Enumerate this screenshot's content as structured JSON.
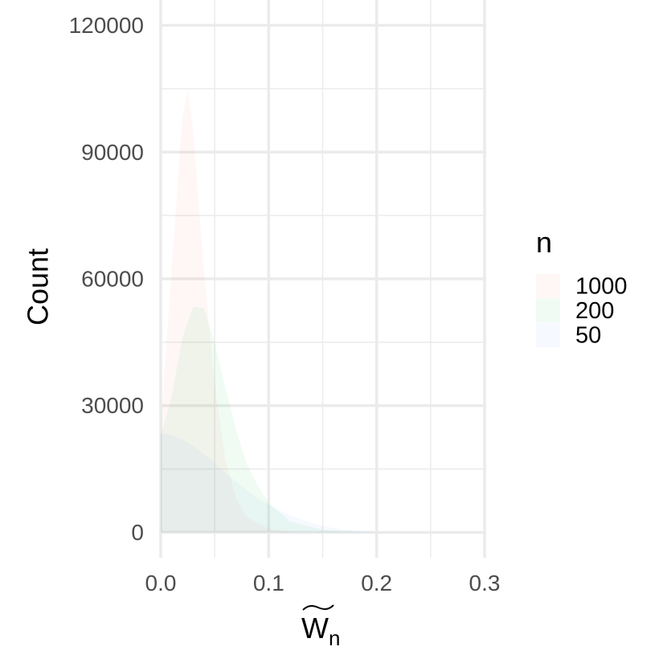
{
  "chart_data": {
    "type": "area",
    "title": "",
    "xlabel": "W",
    "xlabel_subscript": "n",
    "ylabel": "Count",
    "xlim": [
      -0.0015,
      0.3015
    ],
    "ylim": [
      -6000,
      126000
    ],
    "x_ticks": [
      0.0,
      0.1,
      0.2,
      0.3
    ],
    "x_tick_labels": [
      "0.0",
      "0.1",
      "0.2",
      "0.3"
    ],
    "y_ticks": [
      0,
      30000,
      60000,
      90000,
      120000
    ],
    "y_tick_labels": [
      "0",
      "30000",
      "60000",
      "90000",
      "120000"
    ],
    "grid": true,
    "legend": {
      "title": "n",
      "position": "right",
      "entries": [
        "1000",
        "200",
        "50"
      ]
    },
    "series": [
      {
        "name": "1000",
        "color": "#F8766D",
        "points": [
          [
            0.0,
            25000
          ],
          [
            0.01,
            62000
          ],
          [
            0.02,
            98000
          ],
          [
            0.025,
            105000
          ],
          [
            0.03,
            95000
          ],
          [
            0.04,
            62000
          ],
          [
            0.05,
            35000
          ],
          [
            0.06,
            17000
          ],
          [
            0.07,
            8000
          ],
          [
            0.08,
            3500
          ],
          [
            0.1,
            800
          ],
          [
            0.12,
            150
          ],
          [
            0.15,
            0
          ],
          [
            0.3,
            0
          ]
        ]
      },
      {
        "name": "200",
        "color": "#00BA38",
        "points": [
          [
            0.0,
            23000
          ],
          [
            0.01,
            32000
          ],
          [
            0.02,
            46000
          ],
          [
            0.03,
            53500
          ],
          [
            0.04,
            53000
          ],
          [
            0.05,
            45000
          ],
          [
            0.06,
            34000
          ],
          [
            0.07,
            24000
          ],
          [
            0.08,
            16000
          ],
          [
            0.09,
            11000
          ],
          [
            0.1,
            7000
          ],
          [
            0.12,
            2500
          ],
          [
            0.15,
            600
          ],
          [
            0.18,
            100
          ],
          [
            0.2,
            0
          ],
          [
            0.3,
            0
          ]
        ]
      },
      {
        "name": "50",
        "color": "#619CFF",
        "points": [
          [
            0.0,
            23500
          ],
          [
            0.01,
            23000
          ],
          [
            0.02,
            22000
          ],
          [
            0.03,
            20500
          ],
          [
            0.04,
            18500
          ],
          [
            0.05,
            16500
          ],
          [
            0.06,
            14000
          ],
          [
            0.07,
            12000
          ],
          [
            0.08,
            10000
          ],
          [
            0.09,
            8000
          ],
          [
            0.1,
            6500
          ],
          [
            0.12,
            4000
          ],
          [
            0.14,
            2200
          ],
          [
            0.16,
            1000
          ],
          [
            0.18,
            400
          ],
          [
            0.2,
            100
          ],
          [
            0.22,
            0
          ],
          [
            0.3,
            0
          ]
        ]
      }
    ],
    "fill_opacity": 0.06
  }
}
